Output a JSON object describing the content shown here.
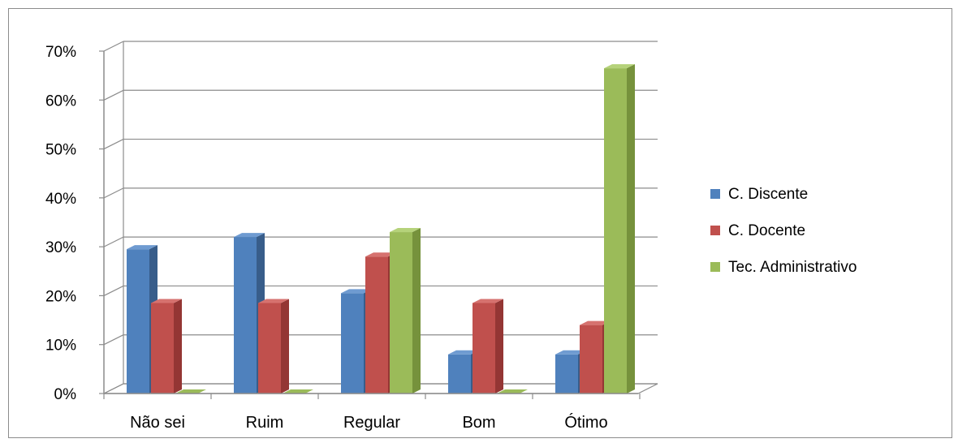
{
  "chart_data": {
    "type": "bar",
    "style": "3d-clustered-column",
    "categories": [
      "Não sei",
      "Ruim",
      "Regular",
      "Bom",
      "Ótimo"
    ],
    "series": [
      {
        "name": "C. Discente",
        "values": [
          29.5,
          32,
          20.5,
          8,
          8
        ],
        "color": "#4f81bd",
        "side": "#385d8a",
        "top": "#6f9bd1"
      },
      {
        "name": "C. Docente",
        "values": [
          18.5,
          18.5,
          28,
          18.5,
          14
        ],
        "color": "#c0504d",
        "side": "#943634",
        "top": "#d6726f"
      },
      {
        "name": "Tec. Administrativo",
        "values": [
          0,
          0,
          33,
          0,
          66.5
        ],
        "color": "#9bbb59",
        "side": "#76923c",
        "top": "#b5d27a"
      }
    ],
    "y_ticks": [
      "0%",
      "10%",
      "20%",
      "30%",
      "40%",
      "50%",
      "60%",
      "70%"
    ],
    "ylim": [
      0,
      70
    ],
    "grid": true,
    "legend_position": "right"
  }
}
